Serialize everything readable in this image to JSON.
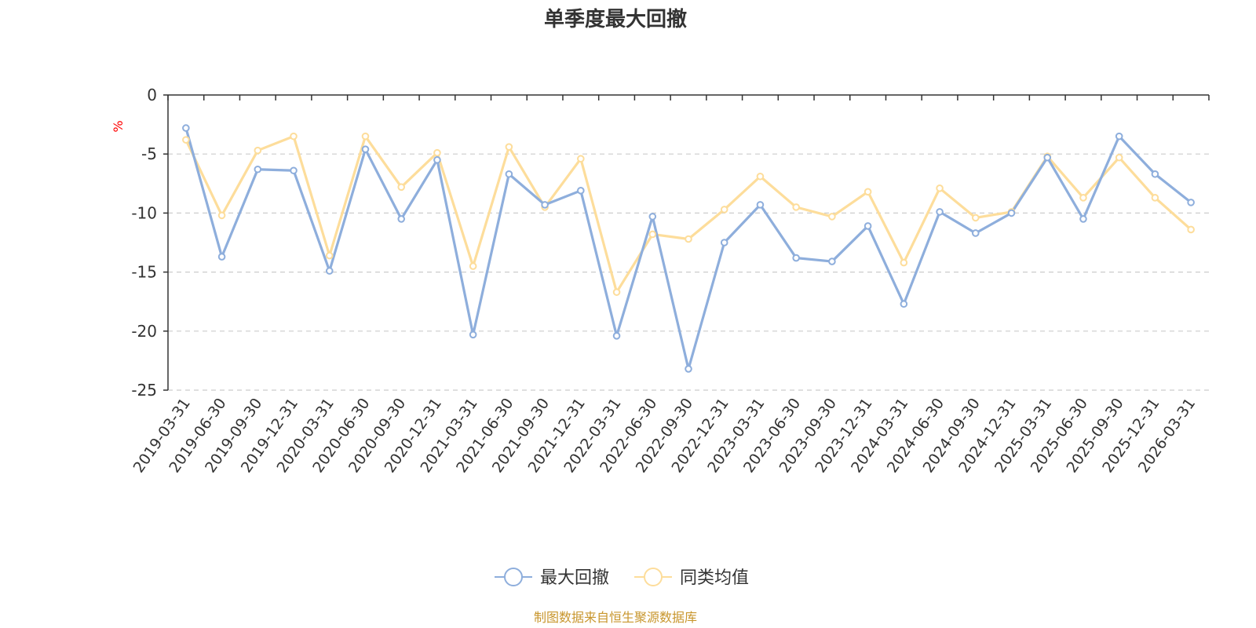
{
  "chart_data": {
    "type": "line",
    "title": "单季度最大回撤",
    "unit": "%",
    "categories": [
      "2019-03-31",
      "2019-06-30",
      "2019-09-30",
      "2019-12-31",
      "2020-03-31",
      "2020-06-30",
      "2020-09-30",
      "2020-12-31",
      "2021-03-31",
      "2021-06-30",
      "2021-09-30",
      "2021-12-31",
      "2022-03-31",
      "2022-06-30",
      "2022-09-30",
      "2022-12-31",
      "2023-03-31",
      "2023-06-30",
      "2023-09-30",
      "2023-12-31",
      "2024-03-31",
      "2024-06-30",
      "2024-09-30",
      "2024-12-31",
      "2025-03-31",
      "2025-06-30",
      "2025-09-30",
      "2025-12-31",
      "2026-03-31"
    ],
    "series": [
      {
        "name": "最大回撤",
        "color": "#8eaedc",
        "values": [
          -2.8,
          -13.7,
          -6.3,
          -6.4,
          -14.9,
          -4.6,
          -10.5,
          -5.5,
          -20.3,
          -6.7,
          -9.3,
          -8.1,
          -20.4,
          -10.3,
          -23.2,
          -12.5,
          -9.3,
          -13.8,
          -14.1,
          -11.1,
          -17.7,
          -9.9,
          -11.7,
          -10.0,
          -5.3,
          -10.5,
          -3.5,
          -6.7,
          -9.1
        ]
      },
      {
        "name": "同类均值",
        "color": "#fddd9b",
        "values": [
          -3.8,
          -10.2,
          -4.7,
          -3.5,
          -13.6,
          -3.5,
          -7.8,
          -4.9,
          -14.5,
          -4.4,
          -9.5,
          -5.4,
          -16.7,
          -11.8,
          -12.2,
          -9.7,
          -6.9,
          -9.5,
          -10.3,
          -8.2,
          -14.2,
          -7.9,
          -10.4,
          -9.9,
          -5.2,
          -8.7,
          -5.3,
          -8.7,
          -11.4
        ]
      }
    ],
    "ylim": [
      -25,
      0
    ],
    "yticks": [
      "0",
      "-5",
      "-10",
      "-15",
      "-20",
      "-25"
    ],
    "ytick_values": [
      0,
      -5,
      -10,
      -15,
      -20,
      -25
    ],
    "grid": true,
    "legend_position": "bottom-center"
  },
  "footer": {
    "source": "制图数据来自恒生聚源数据库"
  }
}
